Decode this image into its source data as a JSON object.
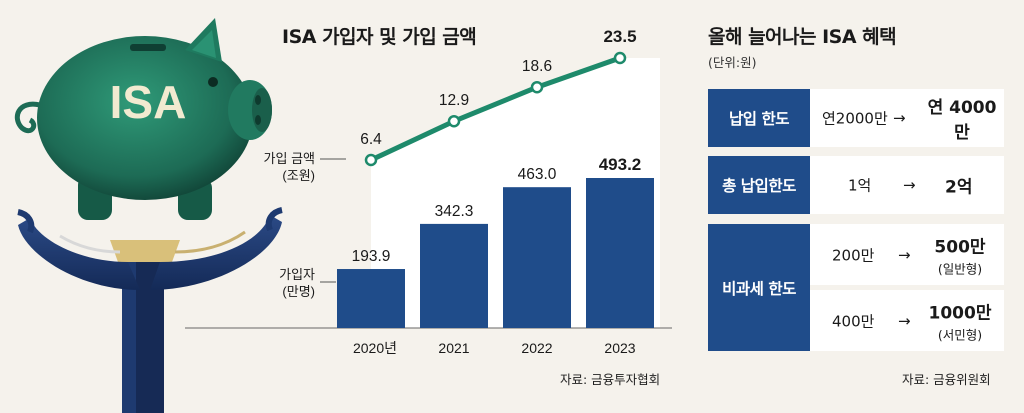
{
  "chart_data": {
    "type": "bar+line",
    "title": "ISA 가입자 및 가입 금액",
    "categories": [
      "2020년",
      "2021",
      "2022",
      "2023"
    ],
    "series": [
      {
        "name": "가입자 (만명)",
        "label_line1": "가입자",
        "label_line2": "(만명)",
        "kind": "bar",
        "values": [
          193.9,
          342.3,
          463.0,
          493.2
        ],
        "labels": [
          "193.9",
          "342.3",
          "463.0",
          "493.2"
        ]
      },
      {
        "name": "가입 금액 (조원)",
        "label_line1": "가입 금액",
        "label_line2": "(조원)",
        "kind": "line",
        "values": [
          6.4,
          12.9,
          18.6,
          23.5
        ],
        "labels": [
          "6.4",
          "12.9",
          "18.6",
          "23.5"
        ]
      }
    ],
    "source": "자료: 금융투자협회"
  },
  "colors": {
    "bar": "#1f4c8a",
    "line": "#1e8a6b",
    "background": "#f5f2ec"
  },
  "illustration": {
    "logo_text": "ISA",
    "icons": [
      "piggy-bank-icon",
      "hands-icon"
    ]
  },
  "benefits": {
    "title": "올해 늘어나는 ISA 혜택",
    "unit": "(단위:원)",
    "arrow": "→",
    "rows": [
      {
        "label": "납입 한도",
        "from": "연2000만",
        "to": "연 4000만"
      },
      {
        "label": "총 납입한도",
        "from": "1억",
        "to": "2억"
      },
      {
        "label": "비과세 한도",
        "sub": [
          {
            "from": "200만",
            "to": "500만",
            "note": "(일반형)"
          },
          {
            "from": "400만",
            "to": "1000만",
            "note": "(서민형)"
          }
        ]
      }
    ],
    "source": "자료: 금융위원회"
  }
}
